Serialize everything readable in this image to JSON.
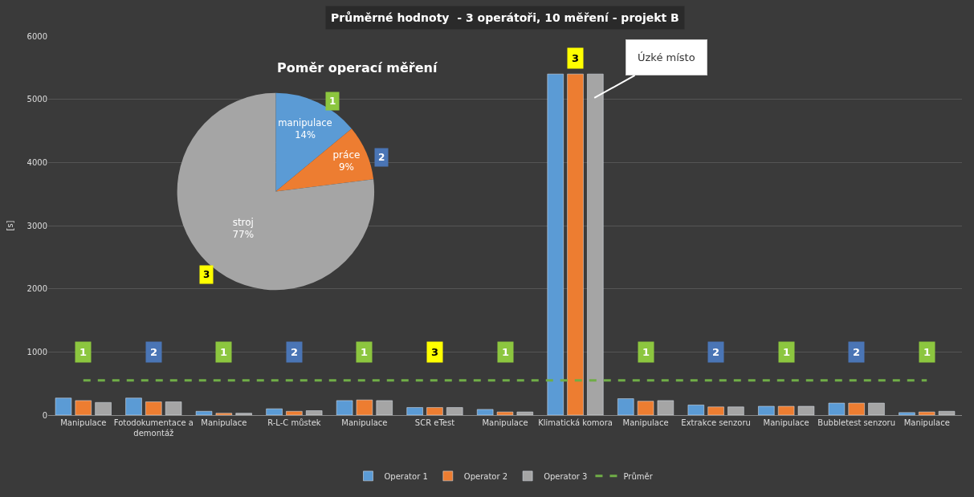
{
  "chart_data": [
    {
      "type": "bar",
      "title": "Průměrné hodnoty  - 3 operátoři, 10 měření - projekt B",
      "ylabel": "[s]",
      "categories": [
        "Manipulace",
        "Fotodokumentace a demontáž",
        "Manipulace",
        "R-L-C můstek",
        "Manipulace",
        "SCR eTest",
        "Manipulace",
        "Klimatická komora",
        "Manipulace",
        "Extrakce senzoru",
        "Manipulace",
        "Bubbletest senzoru",
        "Manipulace"
      ],
      "series": [
        {
          "name": "Operator 1",
          "color": "#5b9bd5",
          "values": [
            270,
            270,
            60,
            100,
            230,
            120,
            90,
            5400,
            260,
            160,
            140,
            190,
            40
          ]
        },
        {
          "name": "Operator 2",
          "color": "#ed7d31",
          "values": [
            230,
            210,
            30,
            60,
            240,
            120,
            50,
            5400,
            220,
            130,
            140,
            190,
            50
          ]
        },
        {
          "name": "Operator 3",
          "color": "#a5a5a5",
          "values": [
            200,
            210,
            30,
            70,
            230,
            120,
            50,
            5400,
            230,
            130,
            140,
            190,
            60
          ]
        },
        {
          "name": "Průměr",
          "type": "line",
          "line_style": "dashed",
          "color": "#70ad47",
          "values": [
            550,
            550,
            550,
            550,
            550,
            550,
            550,
            550,
            550,
            550,
            550,
            550,
            550
          ]
        }
      ],
      "ylim": [
        0,
        6000
      ],
      "yticks": [
        0,
        1000,
        2000,
        3000,
        4000,
        5000,
        6000
      ],
      "grid": "y",
      "legend": "bottom",
      "annotations": [
        "1",
        "2",
        "1",
        "2",
        "1",
        "3",
        "1",
        "3",
        "1",
        "2",
        "1",
        "2",
        "1",
        "Úzké místo"
      ]
    },
    {
      "type": "pie",
      "title": "Poměr operací měření",
      "categories": [
        "manipulace",
        "práce",
        "stroj"
      ],
      "values": [
        14,
        9,
        77
      ],
      "value_labels": [
        "14%",
        "9%",
        "77%"
      ],
      "colors": [
        "#5b9bd5",
        "#ed7d31",
        "#a5a5a5"
      ],
      "annotations": [
        "1",
        "2",
        "3"
      ]
    }
  ]
}
